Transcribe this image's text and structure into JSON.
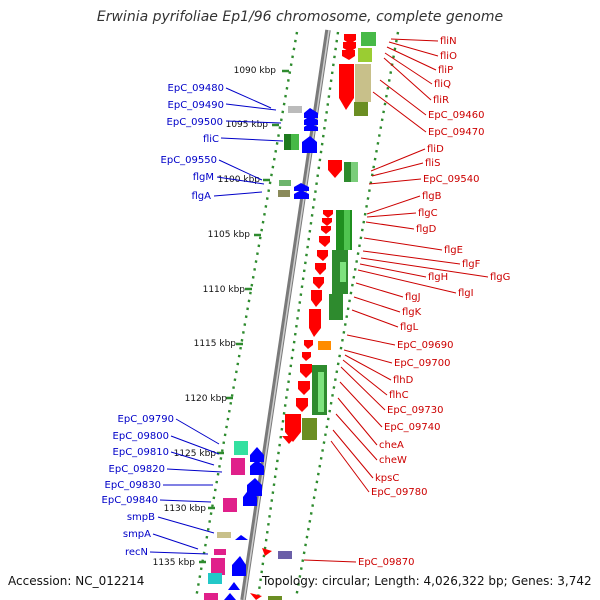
{
  "title": "Erwinia pyrifoliae Ep1/96 chromosome, complete genome",
  "footer": {
    "accession": "Accession: NC_012214",
    "topology": "Topology: circular; Length: 4,026,322 bp; Genes: 3,742"
  },
  "colors": {
    "backbone": "#9a9a9a",
    "dotted_track": "#2e8b2e",
    "left_label": "#0000c8",
    "right_label": "#cc0000",
    "forward_gene": "#0000ff",
    "reverse_gene": "#ff0000"
  },
  "scale_ticks": [
    "1090 kbp",
    "1095 kbp",
    "1100 kbp",
    "1105 kbp",
    "1110 kbp",
    "1115 kbp",
    "1120 kbp",
    "1125 kbp",
    "1130 kbp",
    "1135 kbp"
  ],
  "left_labels": [
    "EpC_09480",
    "EpC_09490",
    "EpC_09500",
    "fliC",
    "EpC_09550",
    "flgM",
    "flgA",
    "EpC_09790",
    "EpC_09800",
    "EpC_09810",
    "EpC_09820",
    "EpC_09830",
    "EpC_09840",
    "smpB",
    "smpA",
    "recN"
  ],
  "right_labels": [
    "fliN",
    "fliO",
    "fliP",
    "fliQ",
    "fliR",
    "EpC_09460",
    "EpC_09470",
    "fliD",
    "fliS",
    "EpC_09540",
    "flgB",
    "flgC",
    "flgD",
    "flgE",
    "flgF",
    "flgG",
    "flgH",
    "flgI",
    "flgJ",
    "flgK",
    "flgL",
    "EpC_09690",
    "EpC_09700",
    "flhD",
    "flhC",
    "EpC_09730",
    "EpC_09740",
    "cheA",
    "cheW",
    "kpsC",
    "EpC_09780",
    "EpC_09870"
  ]
}
